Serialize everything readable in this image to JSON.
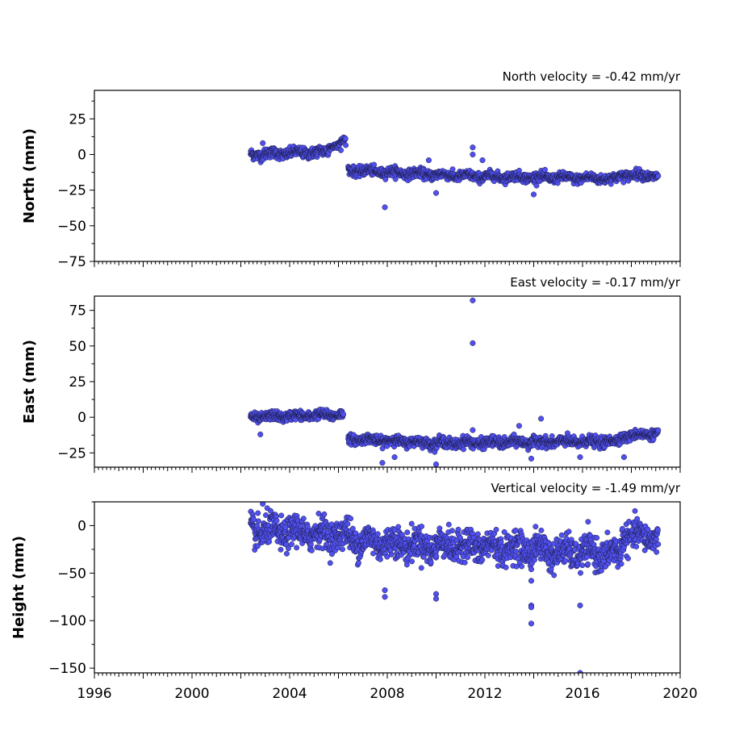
{
  "chart_data": [
    {
      "type": "scatter",
      "title": "North velocity = -0.42 mm/yr",
      "xlabel": "",
      "ylabel": "North (mm)",
      "xlim": [
        1996,
        2020
      ],
      "ylim": [
        -75,
        45
      ],
      "yticks": [
        "25",
        "0",
        "−25",
        "−50",
        "−75"
      ],
      "xticks": [],
      "color": "#5050f0",
      "segments": [
        {
          "x": [
            2002.4,
            2005.6
          ],
          "y": [
            0,
            2
          ],
          "noise": 1.8
        },
        {
          "x": [
            2005.6,
            2006.3
          ],
          "y": [
            5,
            10
          ],
          "noise": 1.2
        },
        {
          "x": [
            2006.4,
            2011.0
          ],
          "y": [
            -11,
            -15
          ],
          "noise": 1.6
        },
        {
          "x": [
            2011.0,
            2017.5
          ],
          "y": [
            -15,
            -17
          ],
          "noise": 1.6
        },
        {
          "x": [
            2017.5,
            2019.1
          ],
          "y": [
            -14,
            -15
          ],
          "noise": 1.6
        }
      ],
      "outliers": [
        {
          "x": 2002.9,
          "y": 8
        },
        {
          "x": 2007.9,
          "y": -37
        },
        {
          "x": 2009.7,
          "y": -4
        },
        {
          "x": 2010.0,
          "y": -27
        },
        {
          "x": 2011.5,
          "y": 5
        },
        {
          "x": 2011.5,
          "y": 0
        },
        {
          "x": 2011.9,
          "y": -4
        },
        {
          "x": 2014.0,
          "y": -28
        },
        {
          "x": 2006.1,
          "y": 3
        }
      ]
    },
    {
      "type": "scatter",
      "title": "East velocity = -0.17 mm/yr",
      "xlabel": "",
      "ylabel": "East (mm)",
      "xlim": [
        1996,
        2020
      ],
      "ylim": [
        -35,
        85
      ],
      "yticks": [
        "75",
        "50",
        "25",
        "0",
        "−25"
      ],
      "xticks": [],
      "color": "#5050f0",
      "segments": [
        {
          "x": [
            2002.4,
            2006.2
          ],
          "y": [
            0,
            2
          ],
          "noise": 1.6
        },
        {
          "x": [
            2006.4,
            2010.0
          ],
          "y": [
            -15,
            -18
          ],
          "noise": 1.6
        },
        {
          "x": [
            2010.0,
            2017.5
          ],
          "y": [
            -18,
            -17
          ],
          "noise": 1.8
        },
        {
          "x": [
            2017.5,
            2019.1
          ],
          "y": [
            -14,
            -11
          ],
          "noise": 1.6
        }
      ],
      "outliers": [
        {
          "x": 2011.5,
          "y": 82
        },
        {
          "x": 2011.5,
          "y": 52
        },
        {
          "x": 2002.8,
          "y": -12
        },
        {
          "x": 2007.8,
          "y": -32
        },
        {
          "x": 2008.3,
          "y": -28
        },
        {
          "x": 2010.0,
          "y": -33
        },
        {
          "x": 2011.5,
          "y": -9
        },
        {
          "x": 2013.4,
          "y": -6
        },
        {
          "x": 2013.9,
          "y": -29
        },
        {
          "x": 2014.3,
          "y": -1
        },
        {
          "x": 2015.9,
          "y": -28
        },
        {
          "x": 2017.7,
          "y": -28
        }
      ]
    },
    {
      "type": "scatter",
      "title": "Vertical velocity = -1.49 mm/yr",
      "xlabel": "",
      "ylabel": "Height (mm)",
      "xlim": [
        1996,
        2020
      ],
      "ylim": [
        -155,
        25
      ],
      "yticks": [
        "0",
        "−50",
        "−100",
        "−150"
      ],
      "xticks": [
        "1996",
        "2000",
        "2004",
        "2008",
        "2012",
        "2016",
        "2020"
      ],
      "color": "#5050f0",
      "segments": [
        {
          "x": [
            2002.4,
            2006.5
          ],
          "y": [
            -5,
            -10
          ],
          "noise": 8
        },
        {
          "x": [
            2006.5,
            2010.0
          ],
          "y": [
            -15,
            -22
          ],
          "noise": 8
        },
        {
          "x": [
            2010.0,
            2014.5
          ],
          "y": [
            -20,
            -25
          ],
          "noise": 8
        },
        {
          "x": [
            2014.5,
            2017.6
          ],
          "y": [
            -28,
            -30
          ],
          "noise": 8
        },
        {
          "x": [
            2017.6,
            2019.1
          ],
          "y": [
            -10,
            -12
          ],
          "noise": 7
        }
      ],
      "outliers": [
        {
          "x": 2002.9,
          "y": 23
        },
        {
          "x": 2007.9,
          "y": -68
        },
        {
          "x": 2007.9,
          "y": -75
        },
        {
          "x": 2010.0,
          "y": -72
        },
        {
          "x": 2010.0,
          "y": -77
        },
        {
          "x": 2013.9,
          "y": -46
        },
        {
          "x": 2013.9,
          "y": -58
        },
        {
          "x": 2013.9,
          "y": -84
        },
        {
          "x": 2013.9,
          "y": -86
        },
        {
          "x": 2013.9,
          "y": -103
        },
        {
          "x": 2015.9,
          "y": -84
        },
        {
          "x": 2015.9,
          "y": -155
        }
      ]
    }
  ]
}
